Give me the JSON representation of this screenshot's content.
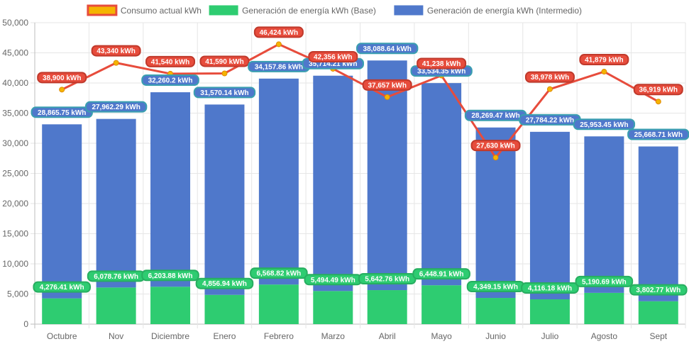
{
  "chart_data": {
    "type": "bar",
    "title": "",
    "xlabel": "",
    "ylabel": "",
    "ylim": [
      0,
      50000
    ],
    "yticks": [
      "0",
      "5,000",
      "10,000",
      "15,000",
      "20,000",
      "25,000",
      "30,000",
      "35,000",
      "40,000",
      "45,000",
      "50,000"
    ],
    "grid": true,
    "legend_position": "top-center",
    "stacked": true,
    "categories": [
      "Octubre",
      "Nov",
      "Diciembre",
      "Enero",
      "Febrero",
      "Marzo",
      "Abril",
      "Mayo",
      "Junio",
      "Julio",
      "Agosto",
      "Sept"
    ],
    "series": [
      {
        "name": "Consumo actual kWh",
        "type": "line",
        "color": "#e74c3c",
        "marker_color": "#f5b400",
        "values": [
          38900,
          43340,
          41540,
          41590,
          46424,
          42356,
          37657,
          41238,
          27630,
          38978,
          41879,
          36919
        ],
        "labels": [
          "38,900 kWh",
          "43,340 kWh",
          "41,540 kWh",
          "41,590 kWh",
          "46,424 kWh",
          "42,356 kWh",
          "37,657 kWh",
          "41,238 kWh",
          "27,630 kWh",
          "38,978 kWh",
          "41,879 kWh",
          "36,919 kWh"
        ]
      },
      {
        "name": "Generación de energía kWh (Base)",
        "type": "bar",
        "color": "#2ecc71",
        "values": [
          4276.41,
          6078.76,
          6203.88,
          4856.94,
          6568.82,
          5494.49,
          5642.76,
          6448.91,
          4349.15,
          4116.18,
          5190.69,
          3802.77
        ],
        "labels": [
          "4,276.41 kWh",
          "6,078.76 kWh",
          "6,203.88 kWh",
          "4,856.94 kWh",
          "6,568.82 kWh",
          "5,494.49 kWh",
          "5,642.76 kWh",
          "6,448.91 kWh",
          "4,349.15 kWh",
          "4,116.18 kWh",
          "5,190.69 kWh",
          "3,802.77 kWh"
        ]
      },
      {
        "name": "Generación de energía kWh (Intermedio)",
        "type": "bar",
        "color": "#4f78cb",
        "values": [
          28865.75,
          27962.29,
          32260.2,
          31570.14,
          34157.86,
          35714.21,
          38088.64,
          33534.35,
          28269.47,
          27784.22,
          25953.45,
          25668.71
        ],
        "labels": [
          "28,865.75 kWh",
          "27,962.29 kWh",
          "32,260.2 kWh",
          "31,570.14 kWh",
          "34,157.86 kWh",
          "35,714.21 kWh",
          "38,088.64 kWh",
          "33,534.35 kWh",
          "28,269.47 kWh",
          "27,784.22 kWh",
          "25,953.45 kWh",
          "25,668.71 kWh"
        ]
      }
    ]
  }
}
